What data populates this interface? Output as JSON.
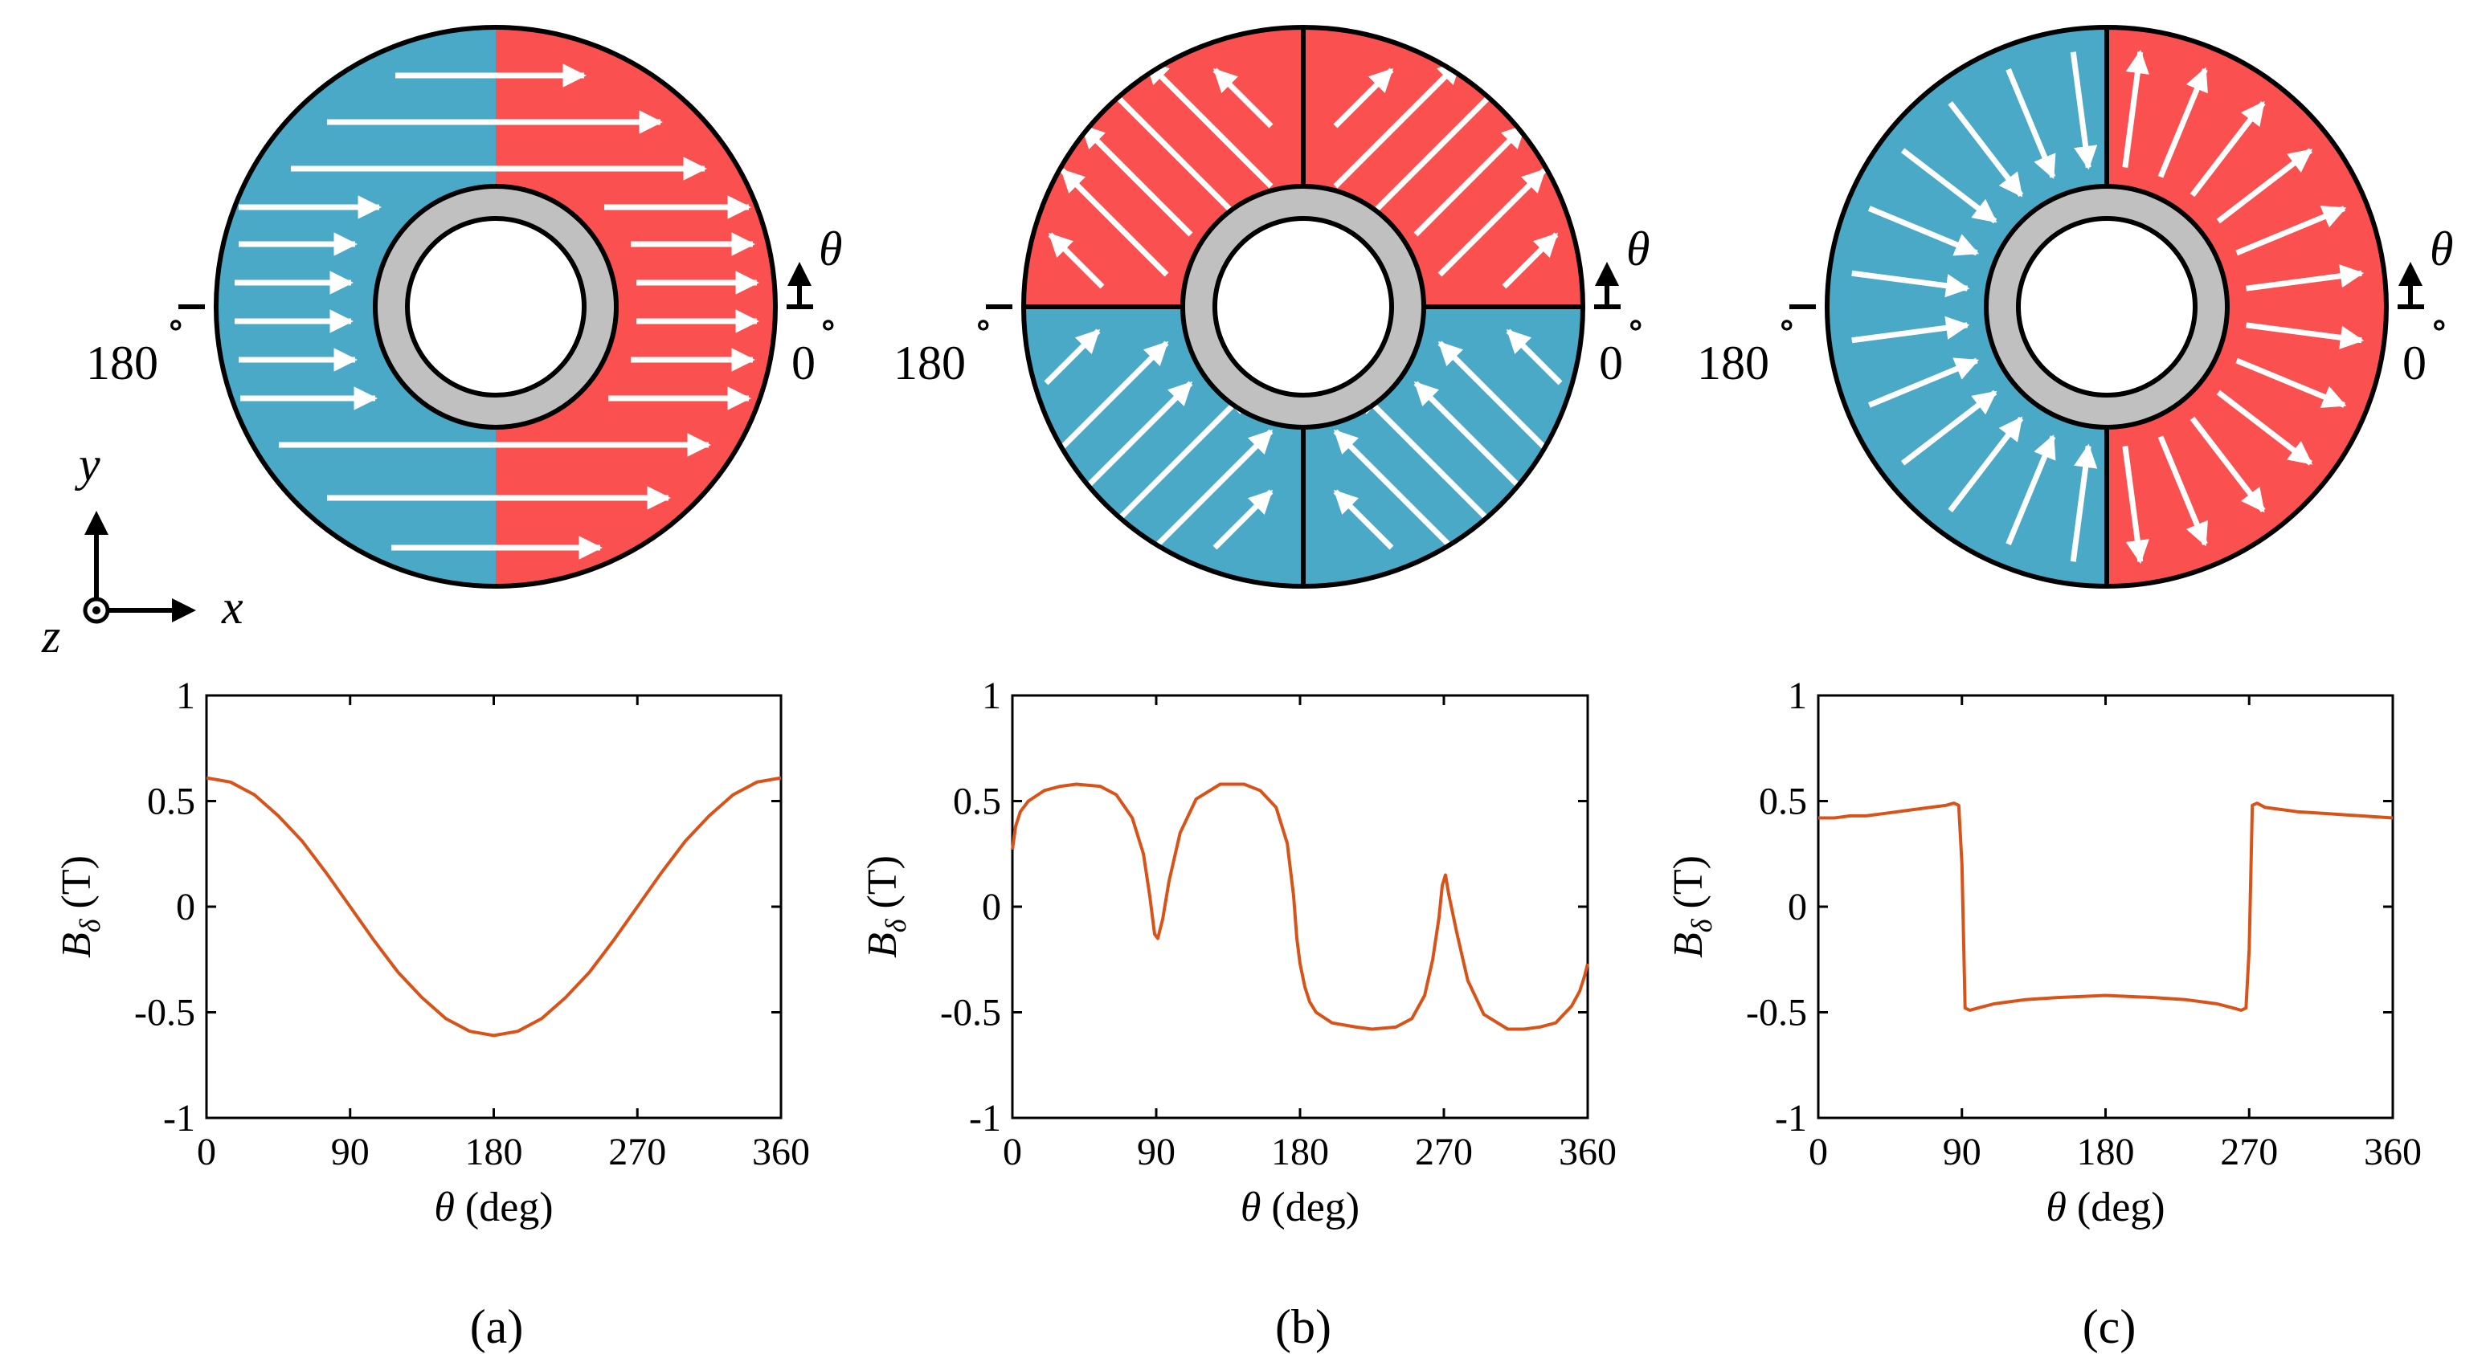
{
  "figure": {
    "panels": [
      {
        "caption": "(a)",
        "magnetization": "parallel",
        "angle_labels": {
          "theta": "θ",
          "right": "0",
          "left": "180",
          "degree": "∘"
        }
      },
      {
        "caption": "(b)",
        "magnetization": "quadrant",
        "angle_labels": {
          "theta": "θ",
          "right": "0",
          "left": "180",
          "degree": "∘"
        }
      },
      {
        "caption": "(c)",
        "magnetization": "radial",
        "angle_labels": {
          "theta": "θ",
          "right": "0",
          "left": "180",
          "degree": "∘"
        }
      }
    ],
    "axes_indicator": {
      "x": "x",
      "y": "y",
      "z": "z"
    },
    "colors": {
      "north": "#fa5050",
      "south": "#4aa9c6",
      "iron": "#c0c0c0",
      "curve": "#d95319"
    }
  },
  "chart_data": [
    {
      "type": "line",
      "xlabel_sym": "θ",
      "xlabel_text": "(deg)",
      "ylabel_sym": "B",
      "ylabel_sub": "δ",
      "ylabel_text": "(T)",
      "xlim": [
        0,
        360
      ],
      "ylim": [
        -1,
        1
      ],
      "xticks": [
        0,
        90,
        180,
        270,
        360
      ],
      "xtick_labels": [
        "0",
        "90",
        "180",
        "270",
        "360"
      ],
      "yticks": [
        -1,
        -0.5,
        0,
        0.5,
        1
      ],
      "ytick_labels": [
        "-1",
        "-0.5",
        "0",
        "0.5",
        "1"
      ],
      "series": [
        {
          "name": "B_delta",
          "x": [
            0,
            15,
            30,
            45,
            60,
            75,
            90,
            105,
            120,
            135,
            150,
            165,
            180,
            195,
            210,
            225,
            240,
            255,
            270,
            285,
            300,
            315,
            330,
            345,
            360
          ],
          "y": [
            0.61,
            0.59,
            0.53,
            0.43,
            0.31,
            0.16,
            0.0,
            -0.16,
            -0.31,
            -0.43,
            -0.53,
            -0.59,
            -0.61,
            -0.59,
            -0.53,
            -0.43,
            -0.31,
            -0.16,
            0.0,
            0.16,
            0.31,
            0.43,
            0.53,
            0.59,
            0.61
          ]
        }
      ]
    },
    {
      "type": "line",
      "xlabel_sym": "θ",
      "xlabel_text": "(deg)",
      "ylabel_sym": "B",
      "ylabel_sub": "δ",
      "ylabel_text": "(T)",
      "xlim": [
        0,
        360
      ],
      "ylim": [
        -1,
        1
      ],
      "xticks": [
        0,
        90,
        180,
        270,
        360
      ],
      "xtick_labels": [
        "0",
        "90",
        "180",
        "270",
        "360"
      ],
      "yticks": [
        -1,
        -0.5,
        0,
        0.5,
        1
      ],
      "ytick_labels": [
        "-1",
        "-0.5",
        "0",
        "0.5",
        "1"
      ],
      "series": [
        {
          "name": "B_delta",
          "x": [
            0,
            2,
            5,
            10,
            20,
            30,
            40,
            55,
            65,
            75,
            82,
            86,
            89,
            91,
            94,
            98,
            105,
            115,
            130,
            145,
            155,
            165,
            172,
            176,
            178,
            180,
            183,
            186,
            190,
            200,
            215,
            225,
            240,
            250,
            258,
            263,
            267,
            269,
            271,
            273,
            278,
            285,
            295,
            310,
            320,
            330,
            340,
            350,
            355,
            358,
            360
          ],
          "y": [
            0.27,
            0.38,
            0.45,
            0.5,
            0.55,
            0.57,
            0.58,
            0.57,
            0.53,
            0.42,
            0.25,
            0.05,
            -0.13,
            -0.15,
            -0.06,
            0.12,
            0.35,
            0.51,
            0.58,
            0.58,
            0.55,
            0.47,
            0.3,
            0.05,
            -0.15,
            -0.27,
            -0.38,
            -0.45,
            -0.5,
            -0.55,
            -0.57,
            -0.58,
            -0.57,
            -0.53,
            -0.42,
            -0.25,
            -0.05,
            0.1,
            0.15,
            0.06,
            -0.12,
            -0.35,
            -0.51,
            -0.58,
            -0.58,
            -0.57,
            -0.55,
            -0.47,
            -0.4,
            -0.33,
            -0.27
          ]
        }
      ]
    },
    {
      "type": "line",
      "xlabel_sym": "θ",
      "xlabel_text": "(deg)",
      "ylabel_sym": "B",
      "ylabel_sub": "δ",
      "ylabel_text": "(T)",
      "xlim": [
        0,
        360
      ],
      "ylim": [
        -1,
        1
      ],
      "xticks": [
        0,
        90,
        180,
        270,
        360
      ],
      "xtick_labels": [
        "0",
        "90",
        "180",
        "270",
        "360"
      ],
      "yticks": [
        -1,
        -0.5,
        0,
        0.5,
        1
      ],
      "ytick_labels": [
        "-1",
        "-0.5",
        "0",
        "0.5",
        "1"
      ],
      "series": [
        {
          "name": "B_delta",
          "x": [
            0,
            10,
            20,
            30,
            40,
            50,
            60,
            70,
            80,
            85,
            88,
            90,
            92,
            95,
            100,
            110,
            130,
            150,
            180,
            210,
            230,
            250,
            260,
            265,
            268,
            270,
            272,
            275,
            280,
            290,
            300,
            320,
            340,
            360
          ],
          "y": [
            0.42,
            0.42,
            0.43,
            0.43,
            0.44,
            0.45,
            0.46,
            0.47,
            0.48,
            0.49,
            0.48,
            0.2,
            -0.48,
            -0.49,
            -0.48,
            -0.46,
            -0.44,
            -0.43,
            -0.42,
            -0.43,
            -0.44,
            -0.46,
            -0.48,
            -0.49,
            -0.48,
            -0.2,
            0.48,
            0.49,
            0.47,
            0.46,
            0.45,
            0.44,
            0.43,
            0.42
          ]
        }
      ]
    }
  ]
}
